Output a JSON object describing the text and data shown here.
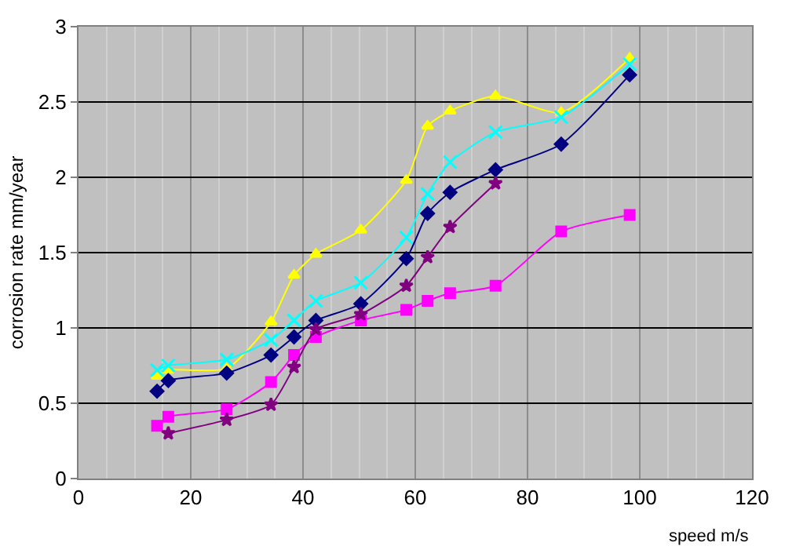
{
  "chart_data": {
    "type": "line",
    "xlabel": "speed m/s",
    "ylabel": "corrosion rate mm/year",
    "xlim": [
      0,
      120
    ],
    "xticks": [
      0,
      20,
      40,
      60,
      80,
      100,
      120
    ],
    "ylim": [
      0,
      3
    ],
    "yticks": [
      0,
      0.5,
      1,
      1.5,
      2,
      2.5,
      3
    ],
    "grid": true,
    "series": [
      {
        "color": "#ffff00",
        "marker": "triangle",
        "x": [
          14,
          16,
          26.4,
          34.3,
          38.4,
          42.3,
          50.3,
          58.4,
          62.2,
          66.2,
          74.3,
          86,
          98.2
        ],
        "values": [
          0.68,
          0.72,
          0.73,
          1.04,
          1.35,
          1.49,
          1.65,
          1.98,
          2.34,
          2.44,
          2.54,
          2.43,
          2.79
        ]
      },
      {
        "color": "#00ffff",
        "marker": "cross",
        "x": [
          14,
          16,
          26.4,
          34.3,
          38.4,
          42.3,
          50.3,
          58.4,
          62.2,
          66.2,
          74.3,
          86,
          98.2
        ],
        "values": [
          0.72,
          0.75,
          0.79,
          0.92,
          1.05,
          1.18,
          1.3,
          1.6,
          1.89,
          2.1,
          2.3,
          2.4,
          2.75
        ]
      },
      {
        "color": "#000080",
        "marker": "diamond",
        "x": [
          14,
          16,
          26.4,
          34.3,
          38.4,
          42.3,
          50.3,
          58.4,
          62.2,
          66.2,
          74.3,
          86,
          98.2
        ],
        "values": [
          0.58,
          0.65,
          0.7,
          0.82,
          0.94,
          1.05,
          1.16,
          1.46,
          1.76,
          1.9,
          2.05,
          2.22,
          2.68
        ]
      },
      {
        "color": "#ff00ff",
        "marker": "square",
        "x": [
          14,
          16,
          26.4,
          34.3,
          38.4,
          42.3,
          50.3,
          58.4,
          62.2,
          66.2,
          74.3,
          86,
          98.2
        ],
        "values": [
          0.35,
          0.41,
          0.46,
          0.64,
          0.82,
          0.94,
          1.05,
          1.12,
          1.18,
          1.23,
          1.28,
          1.64,
          1.75
        ]
      },
      {
        "color": "#800080",
        "marker": "star",
        "x": [
          16,
          26.4,
          34.3,
          38.4,
          42.3,
          50.3,
          58.4,
          62.2,
          66.2,
          74.3
        ],
        "values": [
          0.3,
          0.39,
          0.49,
          0.74,
          0.99,
          1.09,
          1.28,
          1.47,
          1.67,
          1.96
        ]
      }
    ]
  }
}
